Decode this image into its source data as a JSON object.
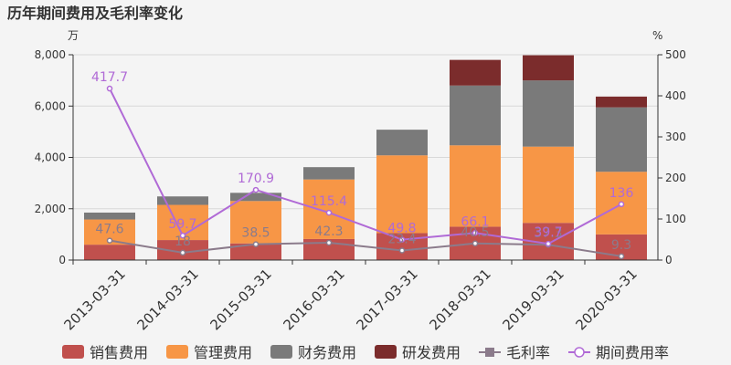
{
  "chart_data": {
    "type": "bar",
    "title": "历年期间费用及毛利率变化",
    "left_unit": "万",
    "right_unit": "%",
    "categories": [
      "2013-03-31",
      "2014-03-31",
      "2015-03-31",
      "2016-03-31",
      "2017-03-31",
      "2018-03-31",
      "2019-03-31",
      "2020-03-31"
    ],
    "ylim_left": [
      0,
      8000
    ],
    "yticks_left": [
      "0",
      "2,000",
      "4,000",
      "6,000",
      "8,000"
    ],
    "ylim_right": [
      0,
      500
    ],
    "yticks_right": [
      "0",
      "100",
      "200",
      "300",
      "400",
      "500"
    ],
    "grid": true,
    "legend_position": "bottom",
    "bar_series": [
      {
        "name": "销售费用",
        "color": "#c0504d",
        "values": [
          600,
          780,
          650,
          820,
          1050,
          1300,
          1450,
          1000
        ]
      },
      {
        "name": "管理费用",
        "color": "#f79646",
        "values": [
          980,
          1370,
          1650,
          2320,
          3030,
          3170,
          2970,
          2440
        ]
      },
      {
        "name": "财务费用",
        "color": "#7a7a7a",
        "values": [
          270,
          330,
          320,
          480,
          1000,
          2330,
          2580,
          2510
        ]
      },
      {
        "name": "研发费用",
        "color": "#7b2c2c",
        "values": [
          0,
          0,
          0,
          0,
          0,
          1000,
          980,
          420
        ]
      }
    ],
    "line_series": [
      {
        "name": "毛利率",
        "color": "#8b7b8b",
        "values": [
          47.6,
          18,
          38.5,
          42.3,
          23.4,
          40.5,
          37.3,
          9.3
        ],
        "labels": [
          "47.6",
          "18",
          "38.5",
          "42.3",
          "23.4",
          "40.5",
          "37.3",
          "9.3"
        ]
      },
      {
        "name": "期间费用率",
        "color": "#b06ad6",
        "values": [
          417.7,
          59.7,
          170.9,
          115.4,
          49.8,
          66.1,
          39.7,
          136
        ],
        "labels": [
          "417.7",
          "59.7",
          "170.9",
          "115.4",
          "49.8",
          "66.1",
          "39.7",
          "136"
        ]
      }
    ]
  }
}
